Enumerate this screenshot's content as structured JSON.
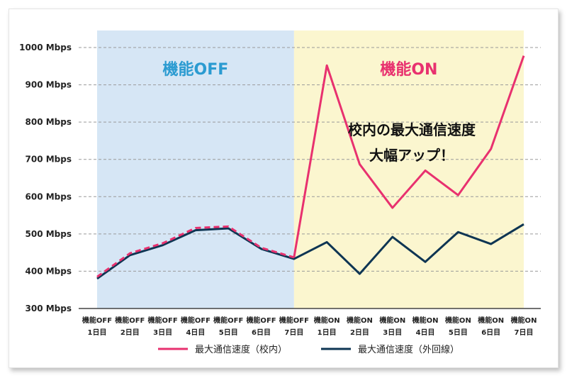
{
  "chart_data": {
    "type": "line",
    "y_ticks": [
      "300 Mbps",
      "400 Mbps",
      "500 Mbps",
      "600 Mbps",
      "700 Mbps",
      "800 Mbps",
      "900 Mbps",
      "1000 Mbps"
    ],
    "ylim": [
      300,
      1000
    ],
    "grid": true,
    "categories": [
      [
        "機能OFF",
        "1日目"
      ],
      [
        "機能OFF",
        "2日目"
      ],
      [
        "機能OFF",
        "3日目"
      ],
      [
        "機能OFF",
        "4日目"
      ],
      [
        "機能OFF",
        "5日目"
      ],
      [
        "機能OFF",
        "6日目"
      ],
      [
        "機能OFF",
        "7日目"
      ],
      [
        "機能ON",
        "1日目"
      ],
      [
        "機能ON",
        "2日目"
      ],
      [
        "機能ON",
        "3日目"
      ],
      [
        "機能ON",
        "4日目"
      ],
      [
        "機能ON",
        "5日目"
      ],
      [
        "機能ON",
        "6日目"
      ],
      [
        "機能ON",
        "7日目"
      ]
    ],
    "regions": [
      {
        "label": "機能OFF",
        "from": 0,
        "to": 6,
        "bg": "#d6e6f5",
        "label_color": "#2b9bd1"
      },
      {
        "label": "機能ON",
        "from": 6,
        "to": 13,
        "bg": "#fbf6cf",
        "label_color": "#e8316f"
      }
    ],
    "series": [
      {
        "name": "最大通信速度（校内）",
        "color": "#e8316f",
        "values": [
          385,
          448,
          475,
          516,
          520,
          463,
          437,
          952,
          687,
          570,
          670,
          604,
          728,
          978
        ]
      },
      {
        "name": "最大通信速度（外回線）",
        "color": "#0e3553",
        "values": [
          380,
          443,
          470,
          510,
          515,
          460,
          433,
          478,
          393,
          492,
          425,
          505,
          473,
          526
        ]
      }
    ],
    "annotation": [
      "校内の最大通信速度",
      "大幅アップ！"
    ],
    "legend_position": "bottom"
  }
}
